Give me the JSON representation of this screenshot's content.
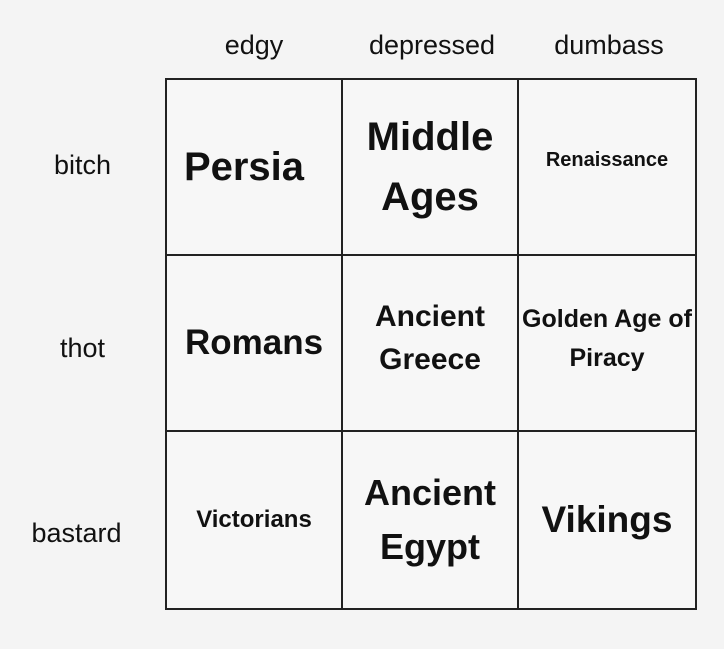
{
  "columns": [
    "edgy",
    "depressed",
    "dumbass"
  ],
  "rows": [
    "bitch",
    "thot",
    "bastard"
  ],
  "cells": [
    [
      "Persia",
      "Middle Ages",
      "Renaissance"
    ],
    [
      "Romans",
      "Ancient Greece",
      "Golden Age of Piracy"
    ],
    [
      "Victorians",
      "Ancient Egypt",
      "Vikings"
    ]
  ]
}
